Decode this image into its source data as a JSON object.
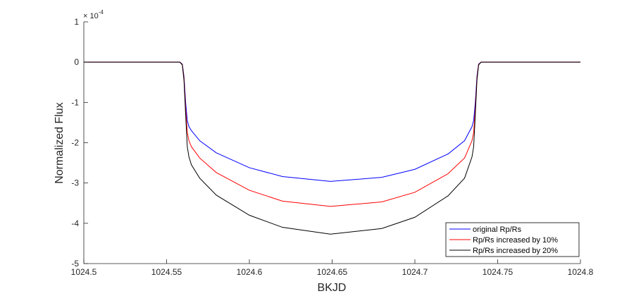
{
  "chart_data": {
    "type": "line",
    "xlabel": "BKJD",
    "ylabel": "Normalized Flux",
    "xlim": [
      1024.5,
      1024.8
    ],
    "ylim": [
      -5,
      1
    ],
    "y_scale_multiplier": "× 10⁻⁴",
    "y_exponent_base": "× 10",
    "y_exponent_power": "-4",
    "x_ticks": [
      1024.5,
      1024.55,
      1024.6,
      1024.65,
      1024.7,
      1024.75,
      1024.8
    ],
    "x_tick_labels": [
      "1024.5",
      "1024.55",
      "1024.6",
      "1024.65",
      "1024.7",
      "1024.75",
      "1024.8"
    ],
    "y_ticks": [
      1,
      0,
      -1,
      -2,
      -3,
      -4,
      -5
    ],
    "y_tick_labels": [
      "1",
      "0",
      "-1",
      "-2",
      "-3",
      "-4",
      "-5"
    ],
    "grid": false,
    "legend_position": "bottom-right",
    "series": [
      {
        "name": "original Rp/Rs",
        "color": "#0000ff",
        "x": [
          1024.5,
          1024.558,
          1024.5595,
          1024.5605,
          1024.5615,
          1024.5625,
          1024.5635,
          1024.565,
          1024.57,
          1024.58,
          1024.6,
          1024.62,
          1024.649,
          1024.68,
          1024.7,
          1024.72,
          1024.73,
          1024.7345,
          1024.7355,
          1024.7365,
          1024.7375,
          1024.7385,
          1024.74,
          1024.8
        ],
        "y": [
          0,
          0,
          -0.05,
          -0.35,
          -1.0,
          -1.45,
          -1.6,
          -1.7,
          -1.95,
          -2.25,
          -2.62,
          -2.84,
          -2.96,
          -2.86,
          -2.66,
          -2.28,
          -1.95,
          -1.6,
          -1.45,
          -1.0,
          -0.35,
          -0.05,
          0,
          0
        ]
      },
      {
        "name": "Rp/Rs increased by 10%",
        "color": "#ff0000",
        "x": [
          1024.5,
          1024.558,
          1024.5595,
          1024.5605,
          1024.5615,
          1024.5625,
          1024.5635,
          1024.565,
          1024.57,
          1024.58,
          1024.6,
          1024.62,
          1024.649,
          1024.68,
          1024.7,
          1024.72,
          1024.73,
          1024.7345,
          1024.7355,
          1024.7365,
          1024.7375,
          1024.7385,
          1024.74,
          1024.8
        ],
        "y": [
          0,
          0,
          -0.06,
          -0.4,
          -1.15,
          -1.75,
          -1.95,
          -2.1,
          -2.38,
          -2.74,
          -3.18,
          -3.45,
          -3.58,
          -3.47,
          -3.23,
          -2.77,
          -2.38,
          -1.95,
          -1.75,
          -1.15,
          -0.4,
          -0.06,
          0,
          0
        ]
      },
      {
        "name": "Rp/Rs increased by 20%",
        "color": "#000000",
        "x": [
          1024.5,
          1024.558,
          1024.5595,
          1024.5605,
          1024.5615,
          1024.5625,
          1024.5635,
          1024.565,
          1024.57,
          1024.58,
          1024.6,
          1024.62,
          1024.649,
          1024.68,
          1024.7,
          1024.72,
          1024.73,
          1024.7345,
          1024.7355,
          1024.7365,
          1024.7375,
          1024.7385,
          1024.74,
          1024.8
        ],
        "y": [
          0,
          0,
          -0.07,
          -0.45,
          -1.3,
          -2.1,
          -2.35,
          -2.55,
          -2.88,
          -3.3,
          -3.8,
          -4.1,
          -4.27,
          -4.13,
          -3.85,
          -3.32,
          -2.88,
          -2.35,
          -2.1,
          -1.3,
          -0.45,
          -0.07,
          0,
          0
        ]
      }
    ]
  }
}
